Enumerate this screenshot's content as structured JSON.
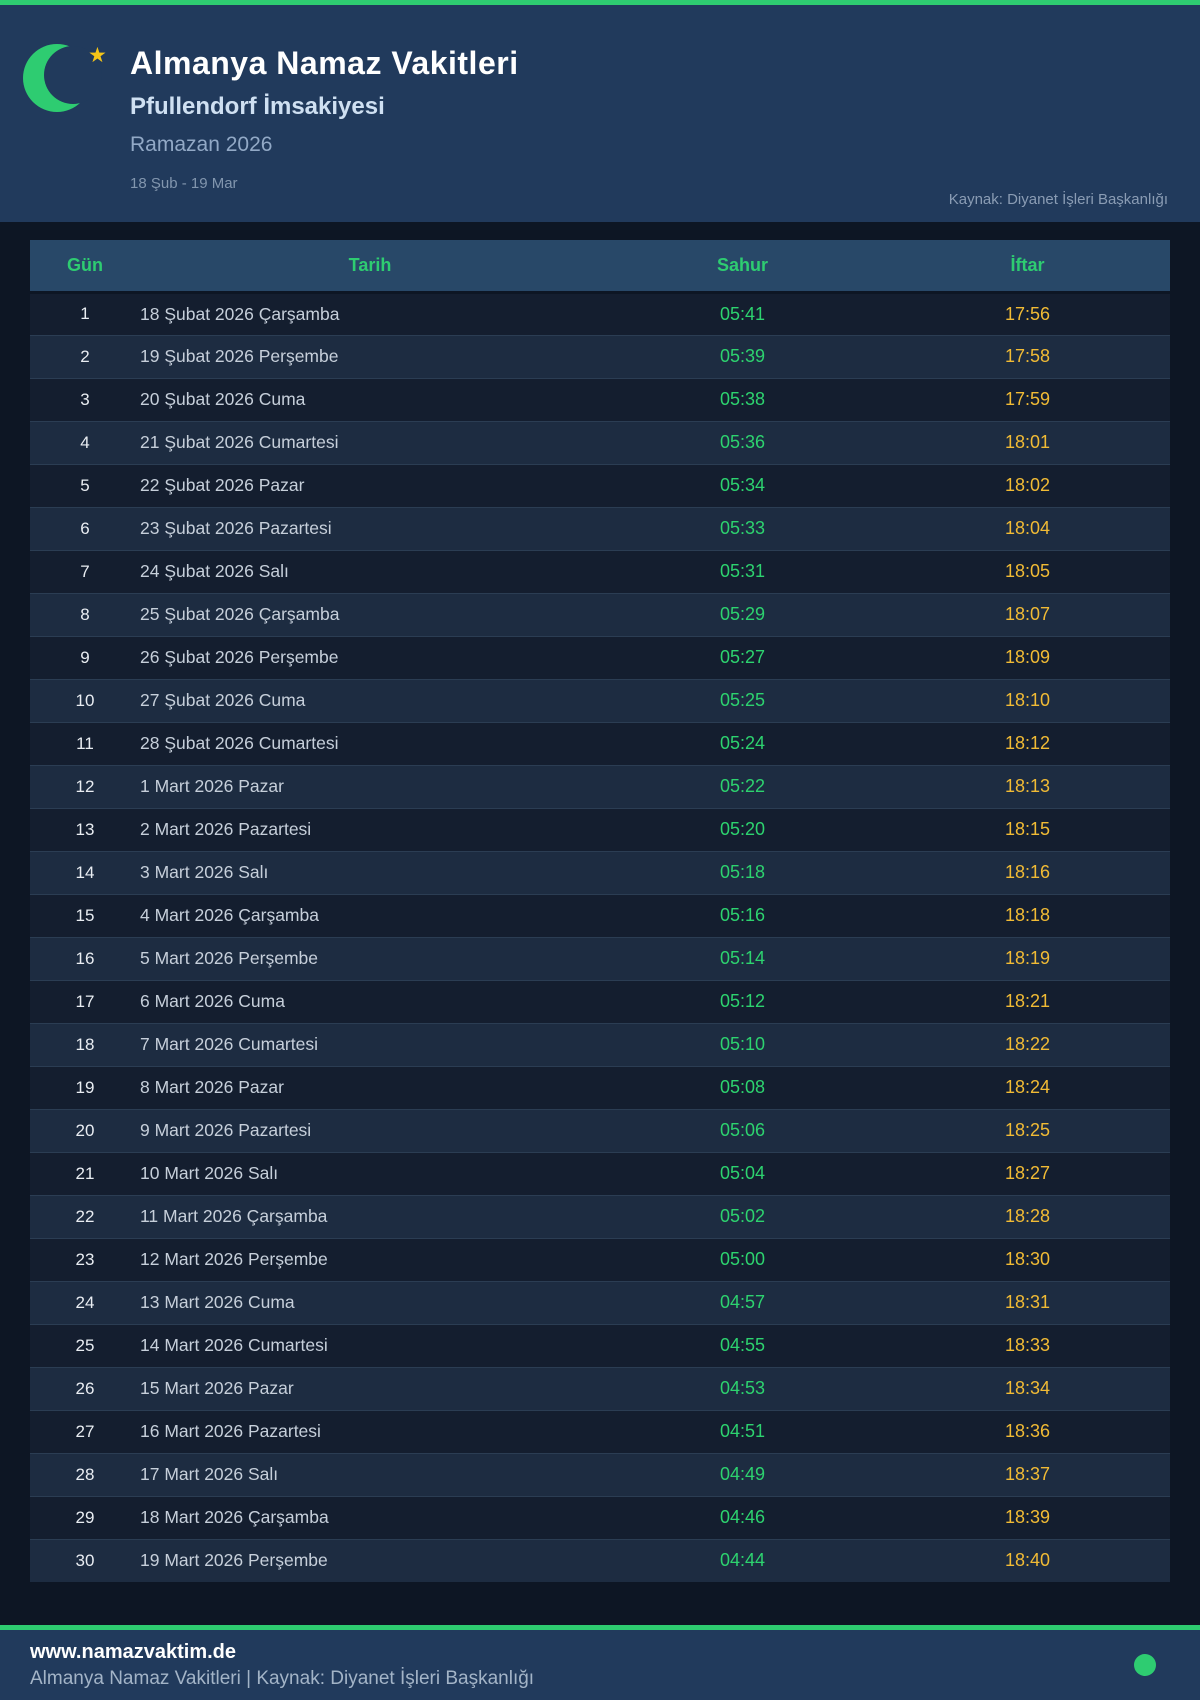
{
  "colors": {
    "accent_green": "#2ecc71",
    "sahur_green": "#2dd36f",
    "iftar_yellow": "#f1bb35",
    "header_bg": "#213a5c",
    "page_bg": "#0d1624"
  },
  "header": {
    "title": "Almanya Namaz Vakitleri",
    "subtitle": "Pfullendorf İmsakiyesi",
    "season": "Ramazan 2026",
    "date_range": "18 Şub - 19 Mar",
    "source": "Kaynak: Diyanet İşleri Başkanlığı",
    "star_glyph": "★"
  },
  "table": {
    "columns": [
      "Gün",
      "Tarih",
      "Sahur",
      "İftar"
    ],
    "rows": [
      {
        "gun": "1",
        "tarih": "18 Şubat 2026 Çarşamba",
        "sahur": "05:41",
        "iftar": "17:56"
      },
      {
        "gun": "2",
        "tarih": "19 Şubat 2026 Perşembe",
        "sahur": "05:39",
        "iftar": "17:58"
      },
      {
        "gun": "3",
        "tarih": "20 Şubat 2026 Cuma",
        "sahur": "05:38",
        "iftar": "17:59"
      },
      {
        "gun": "4",
        "tarih": "21 Şubat 2026 Cumartesi",
        "sahur": "05:36",
        "iftar": "18:01"
      },
      {
        "gun": "5",
        "tarih": "22 Şubat 2026 Pazar",
        "sahur": "05:34",
        "iftar": "18:02"
      },
      {
        "gun": "6",
        "tarih": "23 Şubat 2026 Pazartesi",
        "sahur": "05:33",
        "iftar": "18:04"
      },
      {
        "gun": "7",
        "tarih": "24 Şubat 2026 Salı",
        "sahur": "05:31",
        "iftar": "18:05"
      },
      {
        "gun": "8",
        "tarih": "25 Şubat 2026 Çarşamba",
        "sahur": "05:29",
        "iftar": "18:07"
      },
      {
        "gun": "9",
        "tarih": "26 Şubat 2026 Perşembe",
        "sahur": "05:27",
        "iftar": "18:09"
      },
      {
        "gun": "10",
        "tarih": "27 Şubat 2026 Cuma",
        "sahur": "05:25",
        "iftar": "18:10"
      },
      {
        "gun": "11",
        "tarih": "28 Şubat 2026 Cumartesi",
        "sahur": "05:24",
        "iftar": "18:12"
      },
      {
        "gun": "12",
        "tarih": "1 Mart 2026 Pazar",
        "sahur": "05:22",
        "iftar": "18:13"
      },
      {
        "gun": "13",
        "tarih": "2 Mart 2026 Pazartesi",
        "sahur": "05:20",
        "iftar": "18:15"
      },
      {
        "gun": "14",
        "tarih": "3 Mart 2026 Salı",
        "sahur": "05:18",
        "iftar": "18:16"
      },
      {
        "gun": "15",
        "tarih": "4 Mart 2026 Çarşamba",
        "sahur": "05:16",
        "iftar": "18:18"
      },
      {
        "gun": "16",
        "tarih": "5 Mart 2026 Perşembe",
        "sahur": "05:14",
        "iftar": "18:19"
      },
      {
        "gun": "17",
        "tarih": "6 Mart 2026 Cuma",
        "sahur": "05:12",
        "iftar": "18:21"
      },
      {
        "gun": "18",
        "tarih": "7 Mart 2026 Cumartesi",
        "sahur": "05:10",
        "iftar": "18:22"
      },
      {
        "gun": "19",
        "tarih": "8 Mart 2026 Pazar",
        "sahur": "05:08",
        "iftar": "18:24"
      },
      {
        "gun": "20",
        "tarih": "9 Mart 2026 Pazartesi",
        "sahur": "05:06",
        "iftar": "18:25"
      },
      {
        "gun": "21",
        "tarih": "10 Mart 2026 Salı",
        "sahur": "05:04",
        "iftar": "18:27"
      },
      {
        "gun": "22",
        "tarih": "11 Mart 2026 Çarşamba",
        "sahur": "05:02",
        "iftar": "18:28"
      },
      {
        "gun": "23",
        "tarih": "12 Mart 2026 Perşembe",
        "sahur": "05:00",
        "iftar": "18:30"
      },
      {
        "gun": "24",
        "tarih": "13 Mart 2026 Cuma",
        "sahur": "04:57",
        "iftar": "18:31"
      },
      {
        "gun": "25",
        "tarih": "14 Mart 2026 Cumartesi",
        "sahur": "04:55",
        "iftar": "18:33"
      },
      {
        "gun": "26",
        "tarih": "15 Mart 2026 Pazar",
        "sahur": "04:53",
        "iftar": "18:34"
      },
      {
        "gun": "27",
        "tarih": "16 Mart 2026 Pazartesi",
        "sahur": "04:51",
        "iftar": "18:36"
      },
      {
        "gun": "28",
        "tarih": "17 Mart 2026 Salı",
        "sahur": "04:49",
        "iftar": "18:37"
      },
      {
        "gun": "29",
        "tarih": "18 Mart 2026 Çarşamba",
        "sahur": "04:46",
        "iftar": "18:39"
      },
      {
        "gun": "30",
        "tarih": "19 Mart 2026 Perşembe",
        "sahur": "04:44",
        "iftar": "18:40"
      }
    ]
  },
  "footer": {
    "website": "www.namazvaktim.de",
    "line": "Almanya Namaz Vakitleri | Kaynak: Diyanet İşleri Başkanlığı"
  }
}
